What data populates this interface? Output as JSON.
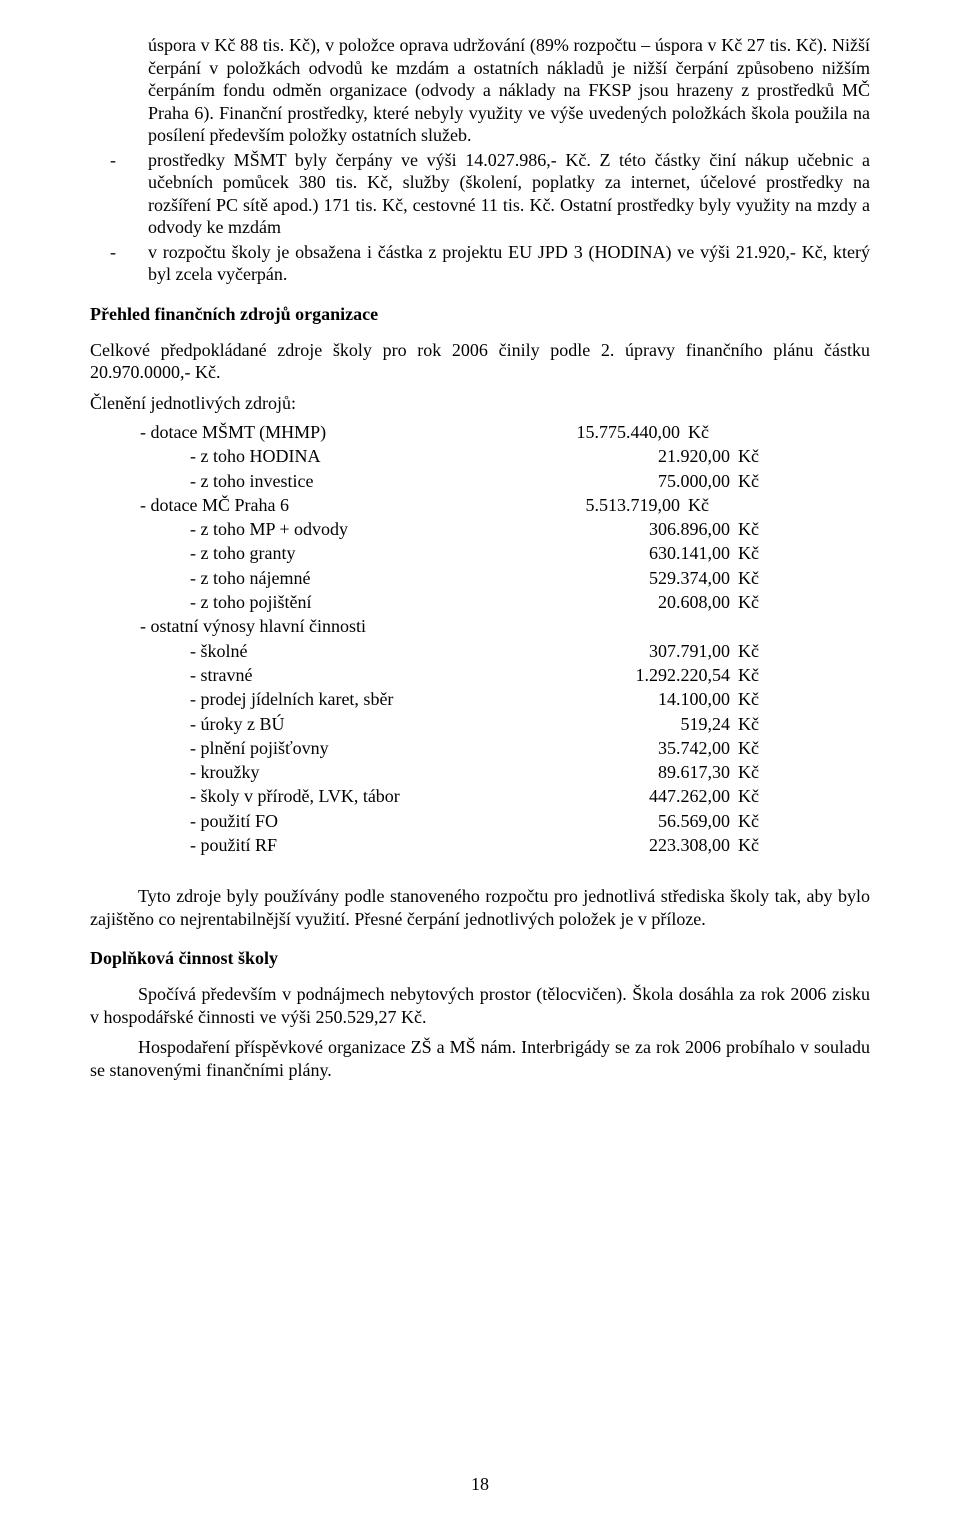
{
  "colors": {
    "background": "#ffffff",
    "text": "#000000"
  },
  "typography": {
    "body_fontsize_pt": 12,
    "body_fontfamily": "Times New Roman",
    "heading_weight": "bold"
  },
  "top_block": {
    "line1": "úspora v Kč 88 tis. Kč), v položce oprava udržování (89% rozpočtu – úspora v Kč 27 tis. Kč). Nižší čerpání v položkách odvodů ke mzdám a ostatních nákladů je nižší čerpání způsobeno nižším čerpáním fondu odměn organizace (odvody a náklady na FKSP jsou hrazeny z prostředků MČ Praha 6). Finanční prostředky, které nebyly využity ve výše uvedených položkách škola použila na posílení především položky ostatních služeb.",
    "item2": "prostředky MŠMT byly čerpány ve výši 14.027.986,- Kč. Z této částky činí nákup učebnic a učebních pomůcek 380 tis. Kč, služby (školení, poplatky za internet, účelové prostředky na rozšíření PC sítě apod.) 171 tis. Kč, cestovné 11 tis. Kč. Ostatní prostředky byly využity na mzdy a odvody ke mzdám",
    "item3": "v rozpočtu školy je obsažena i částka z projektu EU JPD 3 (HODINA) ve výši 21.920,- Kč, který byl zcela vyčerpán."
  },
  "section1_title": "Přehled finančních zdrojů organizace",
  "section1_para": "Celkové předpokládané zdroje školy pro rok 2006 činily podle 2. úpravy finančního plánu částku 20.970.0000,- Kč.",
  "breakdown_title": "Členění jednotlivých zdrojů:",
  "currency": "Kč",
  "rows": [
    {
      "label": "- dotace MŠMT (MHMP)",
      "indent": 1,
      "value": "15.775.440,00"
    },
    {
      "label": "- z toho HODINA",
      "indent": 2,
      "value": "21.920,00"
    },
    {
      "label": "- z toho investice",
      "indent": 2,
      "value": "75.000,00"
    },
    {
      "label": "- dotace MČ Praha 6",
      "indent": 1,
      "value": "5.513.719,00"
    },
    {
      "label": "- z toho MP + odvody",
      "indent": 2,
      "value": "306.896,00"
    },
    {
      "label": "- z toho granty",
      "indent": 2,
      "value": "630.141,00"
    },
    {
      "label": "- z toho nájemné",
      "indent": 2,
      "value": "529.374,00"
    },
    {
      "label": "- z toho pojištění",
      "indent": 2,
      "value": "20.608,00"
    },
    {
      "label": "- ostatní výnosy hlavní činnosti",
      "indent": 1,
      "value": ""
    },
    {
      "label": "- školné",
      "indent": 2,
      "value": "307.791,00"
    },
    {
      "label": "- stravné",
      "indent": 2,
      "value": "1.292.220,54"
    },
    {
      "label": "- prodej jídelních karet, sběr",
      "indent": 2,
      "value": "14.100,00"
    },
    {
      "label": "- úroky z BÚ",
      "indent": 2,
      "value": "519,24"
    },
    {
      "label": "- plnění pojišťovny",
      "indent": 2,
      "value": "35.742,00"
    },
    {
      "label": "- kroužky",
      "indent": 2,
      "value": "89.617,30"
    },
    {
      "label": "- školy v přírodě, LVK, tábor",
      "indent": 2,
      "value": "447.262,00"
    },
    {
      "label": "- použití FO",
      "indent": 2,
      "value": "56.569,00"
    },
    {
      "label": "- použití RF",
      "indent": 2,
      "value": "223.308,00"
    }
  ],
  "below_table_para": "Tyto zdroje byly používány podle stanoveného rozpočtu pro jednotlivá střediska školy tak, aby bylo zajištěno co nejrentabilnější využití. Přesné čerpání jednotlivých položek je v příloze.",
  "section2_title": "Doplňková činnost školy",
  "section2_para1": "Spočívá především v podnájmech nebytových prostor (tělocvičen). Škola dosáhla za rok 2006 zisku v hospodářské činnosti ve výši 250.529,27 Kč.",
  "section2_para2": "Hospodaření příspěvkové organizace ZŠ a MŠ nám. Interbrigády se za rok 2006 probíhalo v souladu se stanovenými finančními plány.",
  "page_number": "18"
}
